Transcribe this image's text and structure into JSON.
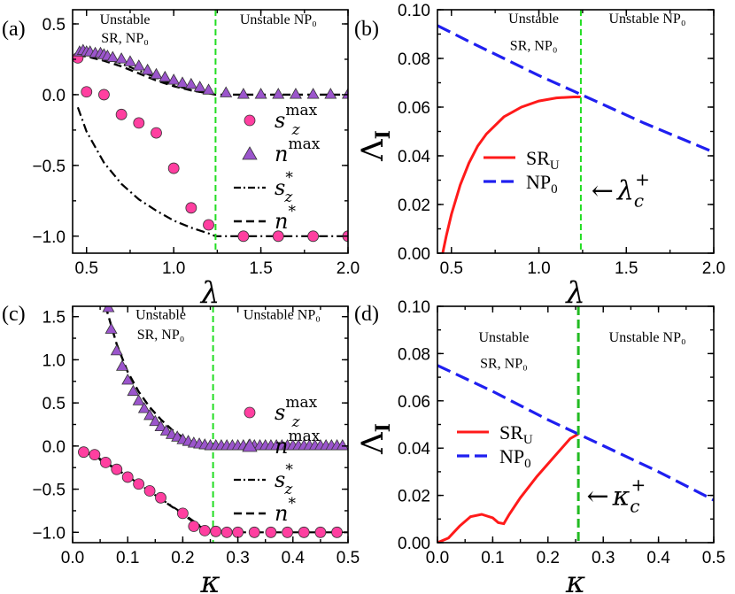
{
  "colors": {
    "circle_fill": "#ff3fa0",
    "triangle_fill": "#9b55cc",
    "sr_red": "#ff1a1a",
    "np_blue": "#1f1ff0",
    "green_line": "#22dd22",
    "green_dark": "#22bb22"
  },
  "chart_data": [
    {
      "panel": "(a)",
      "type": "line+scatter",
      "xlabel": "λ",
      "xlim": [
        0.42,
        2.0
      ],
      "ylim": [
        -1.12,
        0.6
      ],
      "xticks": [
        0.5,
        1.0,
        1.5,
        2.0
      ],
      "xtick_labels": [
        "0.5",
        "1.0",
        "1.5",
        "2.0"
      ],
      "yticks": [
        -1.0,
        -0.5,
        0.0,
        0.5
      ],
      "ytick_labels": [
        "−1.0",
        "−0.5",
        "0.0",
        "0.5"
      ],
      "vline": 1.24,
      "regions": [
        {
          "lines": [
            "Unstable",
            "SR, NP₀"
          ],
          "x": 0.72,
          "y": [
            0.5,
            0.37
          ]
        },
        {
          "lines": [
            "Unstable NP₀"
          ],
          "x": 1.6,
          "y": [
            0.5
          ]
        }
      ],
      "legend": [
        {
          "kind": "circle",
          "main": "s",
          "sub": "z",
          "sup": "max"
        },
        {
          "kind": "triangle",
          "main": "n",
          "sub": "",
          "sup": "max"
        },
        {
          "kind": "dashdot",
          "main": "s",
          "sub": "z",
          "sup": "*"
        },
        {
          "kind": "dash",
          "main": "n",
          "sub": "",
          "sup": "*"
        }
      ],
      "series": [
        {
          "name": "s_z^max",
          "kind": "circle",
          "x": [
            0.45,
            0.5,
            0.6,
            0.7,
            0.8,
            0.9,
            1.0,
            1.1,
            1.2,
            1.4,
            1.6,
            1.8,
            2.0
          ],
          "y": [
            0.26,
            0.02,
            0.0,
            -0.14,
            -0.2,
            -0.27,
            -0.52,
            -0.8,
            -0.92,
            -1.0,
            -1.0,
            -1.0,
            -1.0
          ]
        },
        {
          "name": "n^max",
          "kind": "triangle",
          "x": [
            0.46,
            0.48,
            0.5,
            0.52,
            0.55,
            0.58,
            0.6,
            0.62,
            0.65,
            0.7,
            0.75,
            0.8,
            0.85,
            0.9,
            0.95,
            1.0,
            1.05,
            1.1,
            1.15,
            1.2,
            1.3,
            1.4,
            1.5,
            1.6,
            1.7,
            1.8,
            1.9,
            2.0
          ],
          "y": [
            0.3,
            0.31,
            0.3,
            0.3,
            0.29,
            0.29,
            0.28,
            0.27,
            0.26,
            0.25,
            0.23,
            0.2,
            0.17,
            0.14,
            0.12,
            0.1,
            0.08,
            0.07,
            0.05,
            0.03,
            0.01,
            0.0,
            0.0,
            0.0,
            0.0,
            0.0,
            0.0,
            0.0
          ]
        },
        {
          "name": "s_z^*",
          "kind": "dashdot",
          "x": [
            0.45,
            0.5,
            0.6,
            0.7,
            0.8,
            0.9,
            1.0,
            1.1,
            1.2,
            1.24,
            1.4,
            1.6,
            1.8,
            2.0
          ],
          "y": [
            -0.09,
            -0.26,
            -0.48,
            -0.63,
            -0.74,
            -0.82,
            -0.89,
            -0.94,
            -0.98,
            -1.0,
            -1.0,
            -1.0,
            -1.0,
            -1.0
          ]
        },
        {
          "name": "n^*",
          "kind": "dash",
          "x": [
            0.45,
            0.5,
            0.6,
            0.7,
            0.8,
            0.9,
            1.0,
            1.1,
            1.2,
            1.24,
            1.4,
            1.6,
            1.8,
            2.0
          ],
          "y": [
            0.28,
            0.27,
            0.24,
            0.2,
            0.15,
            0.1,
            0.06,
            0.03,
            0.01,
            0.0,
            0.0,
            0.0,
            0.0,
            0.0
          ]
        },
        {
          "name": "s_z^* top",
          "kind": "dashdot",
          "x": [
            0.45,
            0.5,
            0.6,
            0.7,
            0.8,
            0.9,
            1.0,
            1.1,
            1.2
          ],
          "y": [
            0.3,
            0.29,
            0.26,
            0.22,
            0.17,
            0.12,
            0.07,
            0.03,
            0.01
          ]
        }
      ]
    },
    {
      "panel": "(b)",
      "type": "line",
      "xlabel": "λ",
      "ylabel": "Λ",
      "ylabel_sub": "I",
      "xlim": [
        0.42,
        2.0
      ],
      "ylim": [
        0.0,
        0.1
      ],
      "xticks": [
        0.5,
        1.0,
        1.5,
        2.0
      ],
      "xtick_labels": [
        "0.5",
        "1.0",
        "1.5",
        "2.0"
      ],
      "yticks": [
        0.0,
        0.02,
        0.04,
        0.06,
        0.08,
        0.1
      ],
      "ytick_labels": [
        "0.00",
        "0.02",
        "0.04",
        "0.06",
        "0.08",
        "0.10"
      ],
      "vline": 1.24,
      "regions": [
        {
          "lines": [
            "Unstable",
            "SR, NP₀"
          ],
          "x": 0.97,
          "y": [
            0.0945,
            0.0835
          ]
        },
        {
          "lines": [
            "Unstable NP₀"
          ],
          "x": 1.62,
          "y": [
            0.0945
          ]
        }
      ],
      "annotation": {
        "arrow": "←",
        "main": "λ",
        "sub": "c",
        "sup": "+",
        "x": 1.3,
        "y": 0.022
      },
      "legend": [
        {
          "kind": "solid",
          "main": "SR",
          "sub": "U"
        },
        {
          "kind": "dash",
          "main": "NP",
          "sub": "0"
        }
      ],
      "series": [
        {
          "name": "SR_U",
          "kind": "solid",
          "x": [
            0.45,
            0.47,
            0.5,
            0.55,
            0.6,
            0.65,
            0.7,
            0.8,
            0.9,
            1.0,
            1.1,
            1.2,
            1.24
          ],
          "y": [
            0.0,
            0.007,
            0.016,
            0.028,
            0.037,
            0.044,
            0.049,
            0.056,
            0.06,
            0.0625,
            0.0638,
            0.0642,
            0.0642
          ]
        },
        {
          "name": "NP_0",
          "kind": "dash",
          "x": [
            0.42,
            0.6,
            0.8,
            1.0,
            1.2,
            1.4,
            1.6,
            1.8,
            2.0
          ],
          "y": [
            0.0935,
            0.087,
            0.08,
            0.073,
            0.0665,
            0.06,
            0.0535,
            0.0475,
            0.0415
          ]
        }
      ]
    },
    {
      "panel": "(c)",
      "type": "line+scatter",
      "xlabel": "κ",
      "xlim": [
        0.0,
        0.5
      ],
      "ylim": [
        -1.12,
        1.62
      ],
      "xticks": [
        0.0,
        0.1,
        0.2,
        0.3,
        0.4,
        0.5
      ],
      "xtick_labels": [
        "0.0",
        "0.1",
        "0.2",
        "0.3",
        "0.4",
        "0.5"
      ],
      "yticks": [
        -1.0,
        -0.5,
        0.0,
        0.5,
        1.0,
        1.5
      ],
      "ytick_labels": [
        "−1.0",
        "−0.5",
        "0.0",
        "0.5",
        "1.0",
        "1.5"
      ],
      "vline": 0.255,
      "regions": [
        {
          "lines": [
            "Unstable",
            "SR, NP₀"
          ],
          "x": 0.16,
          "y": [
            1.47,
            1.24
          ]
        },
        {
          "lines": [
            "Unstable NP₀"
          ],
          "x": 0.38,
          "y": [
            1.47
          ]
        }
      ],
      "legend": [
        {
          "kind": "circle",
          "main": "s",
          "sub": "z",
          "sup": "max"
        },
        {
          "kind": "triangle",
          "main": "n",
          "sub": "",
          "sup": "max"
        },
        {
          "kind": "dashdot",
          "main": "s",
          "sub": "z",
          "sup": "*"
        },
        {
          "kind": "dash",
          "main": "n",
          "sub": "",
          "sup": "*"
        }
      ],
      "series": [
        {
          "name": "s_z^max",
          "kind": "circle",
          "x": [
            0.02,
            0.04,
            0.06,
            0.08,
            0.1,
            0.12,
            0.14,
            0.16,
            0.2,
            0.22,
            0.24,
            0.26,
            0.28,
            0.3,
            0.33,
            0.36,
            0.39,
            0.42,
            0.45,
            0.48
          ],
          "y": [
            -0.07,
            -0.1,
            -0.19,
            -0.27,
            -0.36,
            -0.44,
            -0.52,
            -0.6,
            -0.78,
            -0.93,
            -0.98,
            -0.99,
            -1.0,
            -1.0,
            -1.0,
            -1.0,
            -1.0,
            -1.0,
            -1.0,
            -1.0
          ]
        },
        {
          "name": "n^max",
          "kind": "triangle",
          "x": [
            0.065,
            0.07,
            0.08,
            0.09,
            0.1,
            0.11,
            0.12,
            0.13,
            0.14,
            0.15,
            0.16,
            0.17,
            0.18,
            0.19,
            0.2,
            0.21,
            0.22,
            0.23,
            0.24,
            0.25,
            0.26,
            0.27,
            0.28,
            0.29,
            0.3,
            0.31,
            0.32,
            0.33,
            0.34,
            0.35,
            0.36,
            0.37,
            0.38,
            0.39,
            0.4,
            0.41,
            0.42,
            0.43,
            0.44,
            0.45,
            0.46,
            0.47,
            0.48,
            0.49
          ],
          "y": [
            1.6,
            1.35,
            1.1,
            0.92,
            0.76,
            0.63,
            0.52,
            0.43,
            0.35,
            0.28,
            0.22,
            0.17,
            0.13,
            0.1,
            0.07,
            0.05,
            0.03,
            0.02,
            0.01,
            0.0,
            0.0,
            0.0,
            0.0,
            0.0,
            0.0,
            0.0,
            0.0,
            0.0,
            0.0,
            0.0,
            0.0,
            0.0,
            0.0,
            0.0,
            0.0,
            0.0,
            0.0,
            0.0,
            0.0,
            0.0,
            0.0,
            0.0,
            0.0,
            0.0
          ]
        },
        {
          "name": "s_z^*",
          "kind": "dashdot",
          "x": [
            0.02,
            0.05,
            0.1,
            0.15,
            0.2,
            0.23,
            0.255,
            0.3,
            0.4,
            0.5
          ],
          "y": [
            -0.06,
            -0.16,
            -0.35,
            -0.57,
            -0.78,
            -0.92,
            -1.0,
            -1.0,
            -1.0,
            -1.0
          ]
        },
        {
          "name": "n^*",
          "kind": "dash",
          "x": [
            0.06,
            0.07,
            0.08,
            0.1,
            0.12,
            0.14,
            0.16,
            0.18,
            0.2,
            0.22,
            0.24,
            0.255,
            0.3,
            0.4,
            0.5
          ],
          "y": [
            1.62,
            1.4,
            1.18,
            0.86,
            0.63,
            0.45,
            0.31,
            0.19,
            0.1,
            0.04,
            0.01,
            0.0,
            0.0,
            0.0,
            0.0
          ]
        },
        {
          "name": "n^* low",
          "kind": "dash",
          "x": [
            0.02,
            0.05,
            0.1,
            0.15,
            0.2,
            0.23,
            0.255
          ],
          "y": [
            -0.05,
            -0.15,
            -0.35,
            -0.57,
            -0.79,
            -0.93,
            -1.0
          ]
        }
      ]
    },
    {
      "panel": "(d)",
      "type": "line",
      "xlabel": "κ",
      "ylabel": "Λ",
      "ylabel_sub": "I",
      "xlim": [
        0.0,
        0.5
      ],
      "ylim": [
        0.0,
        0.1
      ],
      "xticks": [
        0.0,
        0.1,
        0.2,
        0.3,
        0.4,
        0.5
      ],
      "xtick_labels": [
        "0.0",
        "0.1",
        "0.2",
        "0.3",
        "0.4",
        "0.5"
      ],
      "yticks": [
        0.0,
        0.02,
        0.04,
        0.06,
        0.08,
        0.1
      ],
      "ytick_labels": [
        "0.00",
        "0.02",
        "0.04",
        "0.06",
        "0.08",
        "0.10"
      ],
      "vline": 0.255,
      "regions": [
        {
          "lines": [
            "Unstable",
            "SR, NP₀"
          ],
          "x": 0.12,
          "y": [
            0.085,
            0.074
          ]
        },
        {
          "lines": [
            "Unstable NP₀"
          ],
          "x": 0.38,
          "y": [
            0.085
          ]
        }
      ],
      "annotation": {
        "arrow": "←",
        "main": "κ",
        "sub": "c",
        "sup": "+",
        "x": 0.27,
        "y": 0.016
      },
      "legend": [
        {
          "kind": "solid",
          "main": "SR",
          "sub": "U"
        },
        {
          "kind": "dash",
          "main": "NP",
          "sub": "0"
        }
      ],
      "series": [
        {
          "name": "SR_U",
          "kind": "solid",
          "x": [
            0.0,
            0.02,
            0.04,
            0.06,
            0.08,
            0.1,
            0.11,
            0.12,
            0.13,
            0.15,
            0.18,
            0.21,
            0.24,
            0.255
          ],
          "y": [
            0.0,
            0.002,
            0.007,
            0.011,
            0.012,
            0.0105,
            0.0085,
            0.008,
            0.012,
            0.019,
            0.028,
            0.036,
            0.044,
            0.046
          ]
        },
        {
          "name": "NP_0",
          "kind": "dash",
          "x": [
            0.0,
            0.1,
            0.2,
            0.3,
            0.4,
            0.5
          ],
          "y": [
            0.075,
            0.064,
            0.052,
            0.041,
            0.03,
            0.018
          ]
        }
      ]
    }
  ]
}
